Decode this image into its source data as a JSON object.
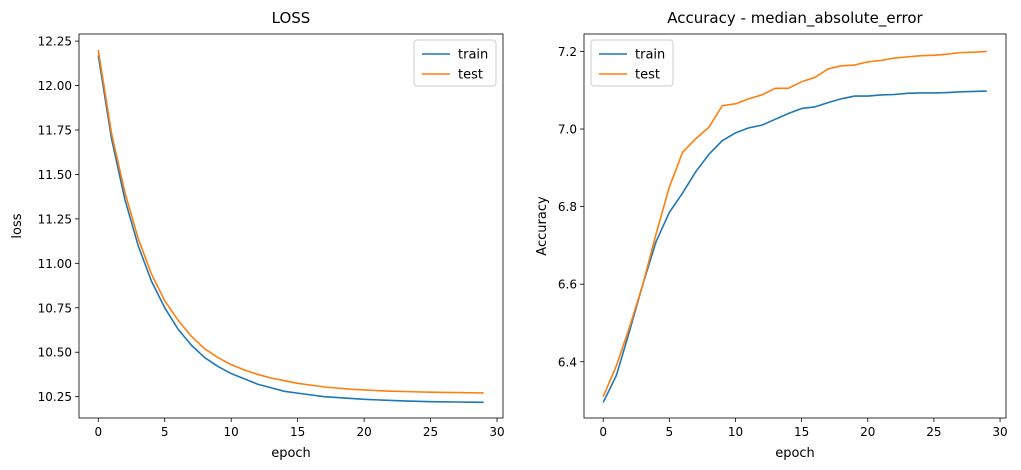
{
  "chart_data": [
    {
      "type": "line",
      "title": "LOSS",
      "xlabel": "epoch",
      "ylabel": "loss",
      "xlim": [
        -1.45,
        30.45
      ],
      "ylim": [
        10.13,
        12.29
      ],
      "xticks": [
        0,
        5,
        10,
        15,
        20,
        25,
        30
      ],
      "yticks": [
        10.25,
        10.5,
        10.75,
        11.0,
        11.25,
        11.5,
        11.75,
        12.0,
        12.25
      ],
      "ytick_decimals": 2,
      "legend": "upper-right",
      "x": [
        0,
        1,
        2,
        3,
        4,
        5,
        6,
        7,
        8,
        9,
        10,
        11,
        12,
        13,
        14,
        15,
        16,
        17,
        18,
        19,
        20,
        21,
        22,
        23,
        24,
        25,
        26,
        27,
        28,
        29
      ],
      "series": [
        {
          "name": "train",
          "color": "#1f77b4",
          "values": [
            12.17,
            11.7,
            11.36,
            11.1,
            10.9,
            10.75,
            10.63,
            10.54,
            10.47,
            10.42,
            10.38,
            10.35,
            10.32,
            10.3,
            10.28,
            10.27,
            10.26,
            10.25,
            10.245,
            10.24,
            10.235,
            10.232,
            10.229,
            10.226,
            10.224,
            10.222,
            10.221,
            10.22,
            10.219,
            10.218
          ]
        },
        {
          "name": "test",
          "color": "#ff7f0e",
          "values": [
            12.2,
            11.73,
            11.4,
            11.14,
            10.94,
            10.79,
            10.68,
            10.59,
            10.52,
            10.47,
            10.43,
            10.4,
            10.375,
            10.355,
            10.34,
            10.325,
            10.315,
            10.305,
            10.298,
            10.292,
            10.288,
            10.284,
            10.281,
            10.279,
            10.277,
            10.275,
            10.274,
            10.273,
            10.272,
            10.271
          ]
        }
      ]
    },
    {
      "type": "line",
      "title": "Accuracy - median_absolute_error",
      "xlabel": "epoch",
      "ylabel": "Accuracy",
      "xlim": [
        -1.45,
        30.45
      ],
      "ylim": [
        6.255,
        7.245
      ],
      "xticks": [
        0,
        5,
        10,
        15,
        20,
        25,
        30
      ],
      "yticks": [
        6.4,
        6.6,
        6.8,
        7.0,
        7.2
      ],
      "ytick_decimals": 1,
      "legend": "upper-left",
      "x": [
        0,
        1,
        2,
        3,
        4,
        5,
        6,
        7,
        8,
        9,
        10,
        11,
        12,
        13,
        14,
        15,
        16,
        17,
        18,
        19,
        20,
        21,
        22,
        23,
        24,
        25,
        26,
        27,
        28,
        29
      ],
      "series": [
        {
          "name": "train",
          "color": "#1f77b4",
          "values": [
            6.295,
            6.365,
            6.48,
            6.6,
            6.71,
            6.785,
            6.835,
            6.89,
            6.935,
            6.97,
            6.99,
            7.003,
            7.01,
            7.025,
            7.04,
            7.053,
            7.057,
            7.068,
            7.078,
            7.085,
            7.085,
            7.088,
            7.089,
            7.092,
            7.093,
            7.093,
            7.094,
            7.096,
            7.097,
            7.098
          ]
        },
        {
          "name": "test",
          "color": "#ff7f0e",
          "values": [
            6.31,
            6.39,
            6.49,
            6.6,
            6.73,
            6.85,
            6.94,
            6.975,
            7.005,
            7.06,
            7.065,
            7.078,
            7.088,
            7.105,
            7.105,
            7.122,
            7.133,
            7.155,
            7.163,
            7.165,
            7.173,
            7.177,
            7.183,
            7.186,
            7.189,
            7.19,
            7.193,
            7.197,
            7.198,
            7.2
          ]
        }
      ]
    }
  ]
}
